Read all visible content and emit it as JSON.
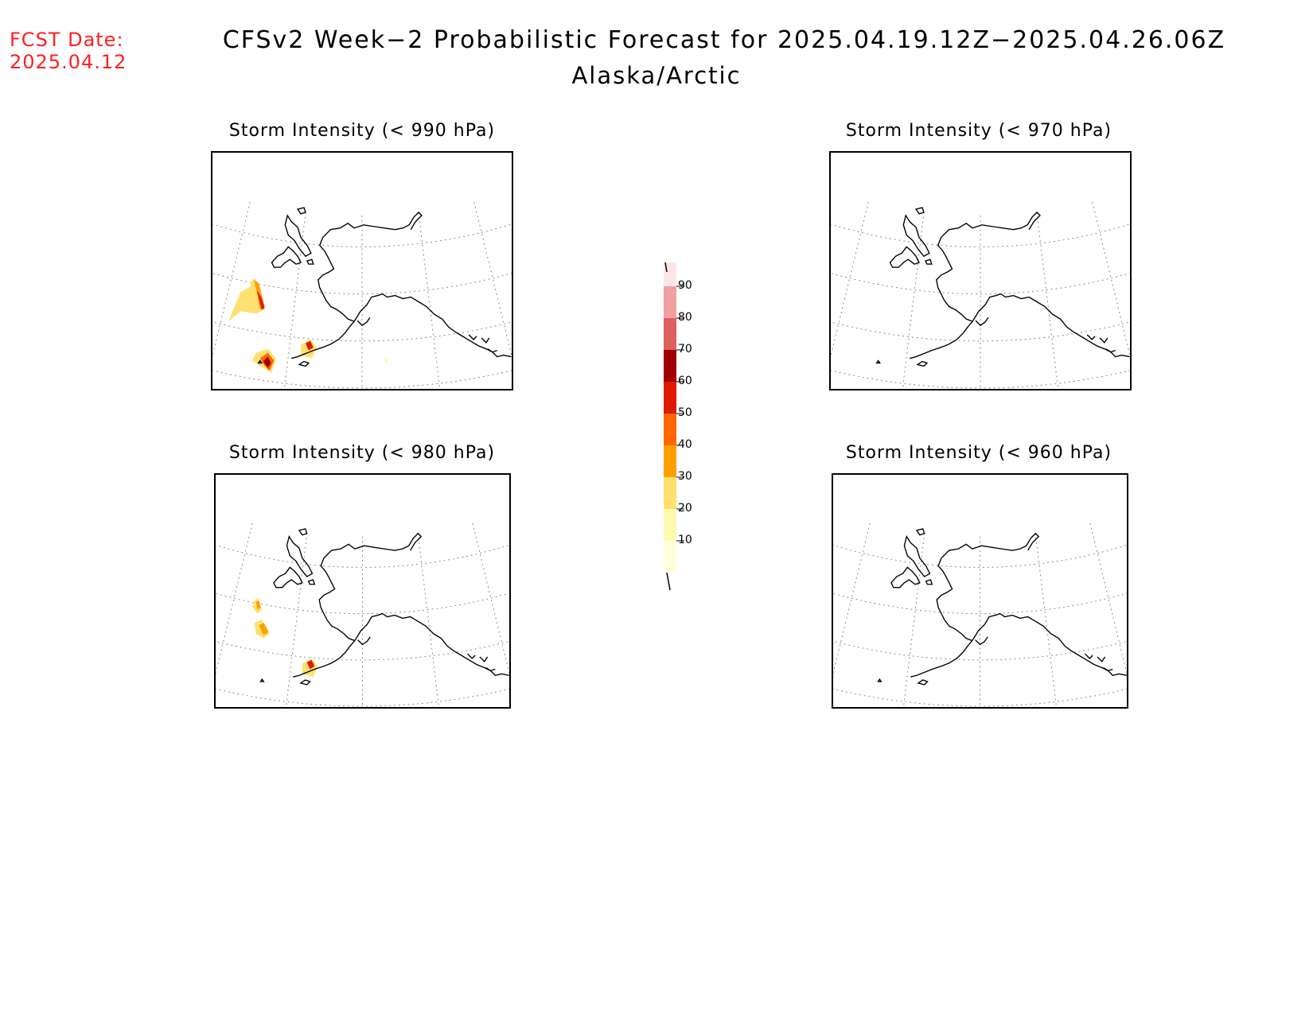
{
  "header": {
    "fcst_label": "FCST Date:",
    "fcst_date": "2025.04.12",
    "title": "CFSv2 Week−2 Probabilistic Forecast for 2025.04.19.12Z−2025.04.26.06Z",
    "subtitle": "Alaska/Arctic"
  },
  "panels": [
    {
      "title": "Storm Intensity (< 990 hPa)",
      "threshold_hpa": 990,
      "has_signal": true
    },
    {
      "title": "Storm Intensity (< 970 hPa)",
      "threshold_hpa": 970,
      "has_signal": false
    },
    {
      "title": "Storm Intensity (< 980 hPa)",
      "threshold_hpa": 980,
      "has_signal": true
    },
    {
      "title": "Storm Intensity (< 960 hPa)",
      "threshold_hpa": 960,
      "has_signal": false
    }
  ],
  "colorbar": {
    "labels": [
      "90",
      "80",
      "70",
      "60",
      "50",
      "40",
      "30",
      "20",
      "10"
    ],
    "colors": [
      "#fde6e6",
      "#f0a0a0",
      "#dc6060",
      "#a00000",
      "#dd1a00",
      "#ff6600",
      "#ff9f00",
      "#ffe070",
      "#fffab0",
      "#ffffdc"
    ]
  },
  "legend_colors": {
    "coastline": "#000000",
    "graticule": "#888888"
  }
}
